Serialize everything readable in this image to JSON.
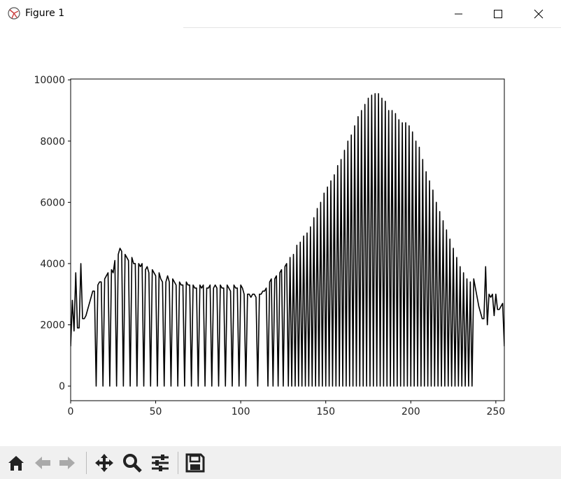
{
  "window": {
    "title": "Figure 1"
  },
  "chart_data": {
    "type": "line",
    "color": "#000000",
    "x": [
      0,
      1,
      2,
      3,
      4,
      5,
      6,
      7,
      8,
      9,
      10,
      11,
      12,
      13,
      14,
      15,
      16,
      17,
      18,
      19,
      20,
      21,
      22,
      23,
      24,
      25,
      26,
      27,
      28,
      29,
      30,
      31,
      32,
      33,
      34,
      35,
      36,
      37,
      38,
      39,
      40,
      41,
      42,
      43,
      44,
      45,
      46,
      47,
      48,
      49,
      50,
      51,
      52,
      53,
      54,
      55,
      56,
      57,
      58,
      59,
      60,
      61,
      62,
      63,
      64,
      65,
      66,
      67,
      68,
      69,
      70,
      71,
      72,
      73,
      74,
      75,
      76,
      77,
      78,
      79,
      80,
      81,
      82,
      83,
      84,
      85,
      86,
      87,
      88,
      89,
      90,
      91,
      92,
      93,
      94,
      95,
      96,
      97,
      98,
      99,
      100,
      101,
      102,
      103,
      104,
      105,
      106,
      107,
      108,
      109,
      110,
      111,
      112,
      113,
      114,
      115,
      116,
      117,
      118,
      119,
      120,
      121,
      122,
      123,
      124,
      125,
      126,
      127,
      128,
      129,
      130,
      131,
      132,
      133,
      134,
      135,
      136,
      137,
      138,
      139,
      140,
      141,
      142,
      143,
      144,
      145,
      146,
      147,
      148,
      149,
      150,
      151,
      152,
      153,
      154,
      155,
      156,
      157,
      158,
      159,
      160,
      161,
      162,
      163,
      164,
      165,
      166,
      167,
      168,
      169,
      170,
      171,
      172,
      173,
      174,
      175,
      176,
      177,
      178,
      179,
      180,
      181,
      182,
      183,
      184,
      185,
      186,
      187,
      188,
      189,
      190,
      191,
      192,
      193,
      194,
      195,
      196,
      197,
      198,
      199,
      200,
      201,
      202,
      203,
      204,
      205,
      206,
      207,
      208,
      209,
      210,
      211,
      212,
      213,
      214,
      215,
      216,
      217,
      218,
      219,
      220,
      221,
      222,
      223,
      224,
      225,
      226,
      227,
      228,
      229,
      230,
      231,
      232,
      233,
      234,
      235,
      236,
      237,
      238,
      239,
      240,
      241,
      242,
      243,
      244,
      245,
      246,
      247,
      248,
      249,
      250,
      251,
      252,
      253,
      254,
      255
    ],
    "values": [
      1300,
      2800,
      1800,
      3700,
      1900,
      1900,
      4000,
      2200,
      2200,
      2300,
      2500,
      2700,
      2900,
      3100,
      3100,
      0,
      3300,
      3400,
      3400,
      0,
      3500,
      3600,
      3700,
      0,
      3800,
      3700,
      4100,
      0,
      4300,
      4500,
      4400,
      0,
      4300,
      4200,
      4100,
      0,
      4200,
      4000,
      4000,
      0,
      4000,
      3900,
      4000,
      0,
      3800,
      3900,
      3700,
      0,
      3800,
      3700,
      3600,
      0,
      3700,
      3500,
      3400,
      0,
      3400,
      3600,
      3400,
      0,
      3500,
      3400,
      3300,
      0,
      3400,
      3300,
      3300,
      0,
      3400,
      3300,
      3300,
      0,
      3300,
      3200,
      3200,
      0,
      3300,
      3200,
      3300,
      0,
      3200,
      3200,
      3300,
      0,
      3200,
      3300,
      3200,
      0,
      3300,
      3200,
      3200,
      0,
      3300,
      3200,
      3100,
      0,
      3300,
      3200,
      3200,
      0,
      3300,
      3200,
      3000,
      0,
      3000,
      3000,
      2900,
      3000,
      3000,
      2900,
      0,
      3000,
      3000,
      3100,
      3100,
      3200,
      0,
      3400,
      3500,
      0,
      3500,
      3600,
      0,
      3700,
      3800,
      0,
      3900,
      4000,
      0,
      4200,
      0,
      4300,
      0,
      4600,
      0,
      4700,
      0,
      4900,
      0,
      5000,
      0,
      5200,
      0,
      5500,
      0,
      5800,
      0,
      6000,
      0,
      6300,
      0,
      6500,
      0,
      6700,
      0,
      6900,
      0,
      7200,
      0,
      7400,
      0,
      7700,
      0,
      8000,
      0,
      8200,
      0,
      8500,
      0,
      8800,
      0,
      9000,
      0,
      9200,
      0,
      9400,
      0,
      9500,
      0,
      9550,
      0,
      9550,
      0,
      9400,
      0,
      9300,
      0,
      9000,
      0,
      9000,
      0,
      8900,
      0,
      8700,
      0,
      8600,
      0,
      8600,
      0,
      8500,
      0,
      8300,
      0,
      8000,
      0,
      7800,
      0,
      7400,
      0,
      7000,
      0,
      6700,
      0,
      6400,
      0,
      6000,
      0,
      5700,
      0,
      5400,
      0,
      5100,
      0,
      4800,
      0,
      4500,
      0,
      4200,
      0,
      3900,
      0,
      3700,
      0,
      3500,
      0,
      3400,
      0,
      3500,
      3200,
      2900,
      2600,
      2400,
      2200,
      2200,
      3900,
      2000,
      3000,
      2900,
      3000,
      2300,
      3000,
      2500,
      2500,
      2600,
      2700,
      1300
    ],
    "xlim": [
      0,
      255
    ],
    "ylim": [
      -477.5,
      10027.5
    ],
    "xticks": [
      0,
      50,
      100,
      150,
      200,
      250
    ],
    "yticks": [
      0,
      2000,
      4000,
      6000,
      8000,
      10000
    ]
  }
}
